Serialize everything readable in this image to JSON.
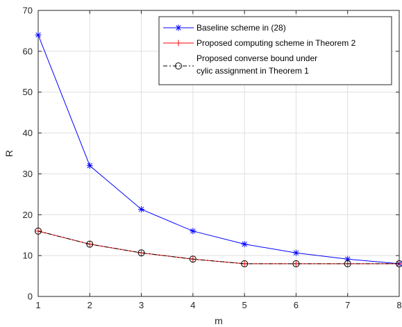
{
  "chart_data": {
    "type": "line",
    "xlabel": "m",
    "ylabel": "R",
    "xlim": [
      1,
      8
    ],
    "ylim": [
      0,
      70
    ],
    "xticks": [
      1,
      2,
      3,
      4,
      5,
      6,
      7,
      8
    ],
    "yticks": [
      0,
      10,
      20,
      30,
      40,
      50,
      60,
      70
    ],
    "grid": true,
    "legend_position": "top-right",
    "x": [
      1,
      2,
      3,
      4,
      5,
      6,
      7,
      8
    ],
    "series": [
      {
        "name": "Baseline scheme in (28)",
        "values": [
          64,
          32,
          21.33,
          16,
          12.8,
          10.67,
          9.14,
          8
        ],
        "color": "#0000ff",
        "marker": "asterisk",
        "line": "solid"
      },
      {
        "name": "Proposed computing scheme in Theorem 2",
        "values": [
          16,
          12.8,
          10.67,
          9.14,
          8,
          8,
          8,
          8
        ],
        "color": "#ff0000",
        "marker": "plus",
        "line": "solid"
      },
      {
        "name_lines": [
          "Proposed converse bound under",
          "cylic assignment in Theorem 1"
        ],
        "values": [
          16,
          12.8,
          10.67,
          9.14,
          8,
          8,
          8,
          8
        ],
        "color": "#000000",
        "marker": "circle",
        "line": "dashdot"
      }
    ]
  }
}
